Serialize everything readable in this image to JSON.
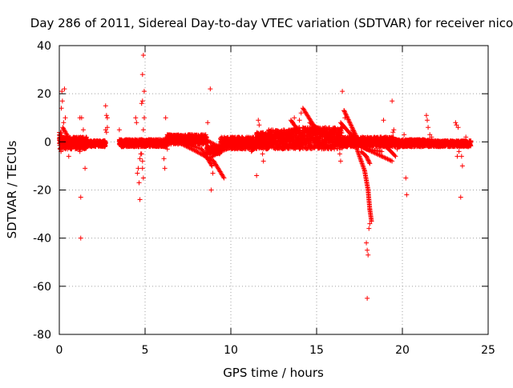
{
  "colors": {
    "series": "#ff0000",
    "grid": "#a0a0a0",
    "frame": "#000000",
    "background": "#ffffff"
  },
  "chart_data": {
    "type": "scatter",
    "title": "Day 286 of 2011, Sidereal Day-to-day VTEC variation (SDTVAR) for receiver nico",
    "xlabel": "GPS time / hours",
    "ylabel": "SDTVAR / TECUs",
    "xlim": [
      0,
      25
    ],
    "ylim": [
      -80,
      40
    ],
    "xticks": [
      0,
      5,
      10,
      15,
      20,
      25
    ],
    "yticks": [
      -80,
      -60,
      -40,
      -20,
      0,
      20,
      40
    ],
    "grid": true,
    "marker": "plus",
    "series": [
      {
        "name": "SDTVAR",
        "bands": [
          {
            "x0": 0.0,
            "x1": 0.2,
            "ylo": -3,
            "yhi": 4
          },
          {
            "x0": 0.2,
            "x1": 1.6,
            "ylo": -3,
            "yhi": 2
          },
          {
            "x0": 1.6,
            "x1": 2.7,
            "ylo": -2,
            "yhi": 0.5
          },
          {
            "x0": 3.5,
            "x1": 4.6,
            "ylo": -2,
            "yhi": 1
          },
          {
            "x0": 4.6,
            "x1": 6.3,
            "ylo": -2,
            "yhi": 1
          },
          {
            "x0": 6.3,
            "x1": 8.6,
            "ylo": -1,
            "yhi": 3
          },
          {
            "x0": 8.6,
            "x1": 9.4,
            "ylo": -5,
            "yhi": -2
          },
          {
            "x0": 9.4,
            "x1": 11.5,
            "ylo": -3,
            "yhi": 2
          },
          {
            "x0": 11.5,
            "x1": 12.2,
            "ylo": -3,
            "yhi": 4
          },
          {
            "x0": 12.2,
            "x1": 14.2,
            "ylo": -3,
            "yhi": 5
          },
          {
            "x0": 14.2,
            "x1": 16.5,
            "ylo": -3,
            "yhi": 6
          },
          {
            "x0": 16.5,
            "x1": 19.5,
            "ylo": -2,
            "yhi": 2
          },
          {
            "x0": 19.5,
            "x1": 21.6,
            "ylo": -2,
            "yhi": 1
          },
          {
            "x0": 21.6,
            "x1": 24.0,
            "ylo": -2,
            "yhi": 0.5
          }
        ],
        "tracks": [
          [
            [
              0.2,
              6
            ],
            [
              0.6,
              1
            ],
            [
              1.0,
              0
            ]
          ],
          [
            [
              3.5,
              1
            ],
            [
              4.2,
              -1
            ],
            [
              4.6,
              -1
            ]
          ],
          [
            [
              6.3,
              3
            ],
            [
              7.5,
              2
            ],
            [
              8.5,
              1
            ],
            [
              9.3,
              -2
            ]
          ],
          [
            [
              6.6,
              1
            ],
            [
              8.0,
              -4
            ],
            [
              9.0,
              -8
            ],
            [
              9.6,
              -15
            ]
          ],
          [
            [
              7.0,
              0
            ],
            [
              8.3,
              -3
            ],
            [
              8.9,
              -10
            ]
          ],
          [
            [
              8.7,
              -7
            ],
            [
              9.4,
              -4
            ],
            [
              10.5,
              -1
            ],
            [
              11.5,
              0
            ]
          ],
          [
            [
              11.2,
              -4
            ],
            [
              11.7,
              0
            ],
            [
              12.3,
              4
            ]
          ],
          [
            [
              11.8,
              0
            ],
            [
              12.6,
              3
            ],
            [
              13.6,
              5
            ]
          ],
          [
            [
              12.2,
              1
            ],
            [
              13.2,
              4
            ],
            [
              14.0,
              6
            ]
          ],
          [
            [
              13.5,
              9
            ],
            [
              14.0,
              4
            ],
            [
              14.4,
              0
            ]
          ],
          [
            [
              14.2,
              14
            ],
            [
              14.9,
              6
            ],
            [
              15.5,
              2
            ],
            [
              16.0,
              0
            ]
          ],
          [
            [
              14.6,
              8
            ],
            [
              15.4,
              4
            ],
            [
              16.2,
              1
            ]
          ],
          [
            [
              16.4,
              8
            ],
            [
              17.0,
              3
            ],
            [
              17.6,
              0
            ]
          ],
          [
            [
              16.6,
              13
            ],
            [
              17.6,
              -2
            ],
            [
              18.8,
              -6
            ],
            [
              19.4,
              -8
            ]
          ],
          [
            [
              17.1,
              5
            ],
            [
              17.3,
              -2
            ],
            [
              17.6,
              -8
            ],
            [
              17.8,
              -12
            ],
            [
              18.0,
              -20
            ],
            [
              18.1,
              -28
            ],
            [
              18.2,
              -33
            ]
          ],
          [
            [
              17.6,
              -4
            ],
            [
              17.9,
              -6
            ],
            [
              18.1,
              -9
            ]
          ],
          [
            [
              16.8,
              2
            ],
            [
              17.9,
              -3
            ],
            [
              18.8,
              -4
            ]
          ],
          [
            [
              18.6,
              0
            ],
            [
              19.2,
              -3
            ],
            [
              19.6,
              -6
            ]
          ],
          [
            [
              19.6,
              0
            ],
            [
              20.6,
              -1
            ],
            [
              21.6,
              0
            ]
          ],
          [
            [
              21.5,
              0
            ],
            [
              22.6,
              -1
            ],
            [
              23.8,
              0
            ]
          ]
        ],
        "points": [
          [
            0.15,
            21
          ],
          [
            0.18,
            17
          ],
          [
            0.12,
            14
          ],
          [
            0.3,
            22
          ],
          [
            0.35,
            10
          ],
          [
            0.25,
            8
          ],
          [
            0.05,
            -3
          ],
          [
            0.1,
            -4
          ],
          [
            0.55,
            -6
          ],
          [
            0.2,
            5
          ],
          [
            1.2,
            10
          ],
          [
            1.3,
            10
          ],
          [
            1.2,
            -4
          ],
          [
            1.25,
            -23
          ],
          [
            1.25,
            -40
          ],
          [
            1.5,
            -11
          ],
          [
            1.4,
            5
          ],
          [
            2.7,
            15
          ],
          [
            2.75,
            11
          ],
          [
            2.8,
            10
          ],
          [
            2.7,
            5
          ],
          [
            2.75,
            4
          ],
          [
            2.8,
            6
          ],
          [
            3.5,
            5
          ],
          [
            4.45,
            10
          ],
          [
            4.5,
            8
          ],
          [
            4.55,
            -13
          ],
          [
            4.6,
            -11
          ],
          [
            4.65,
            -17
          ],
          [
            4.7,
            -24
          ],
          [
            4.75,
            -5
          ],
          [
            4.6,
            -2
          ],
          [
            4.7,
            -7
          ],
          [
            4.9,
            36
          ],
          [
            4.85,
            28
          ],
          [
            4.8,
            16
          ],
          [
            4.85,
            17
          ],
          [
            4.95,
            21
          ],
          [
            4.9,
            5
          ],
          [
            4.95,
            10
          ],
          [
            4.85,
            -11
          ],
          [
            4.9,
            -15
          ],
          [
            4.8,
            -5
          ],
          [
            4.85,
            -8
          ],
          [
            6.1,
            -7
          ],
          [
            6.15,
            -11
          ],
          [
            6.2,
            10
          ],
          [
            6.25,
            2
          ],
          [
            6.3,
            -3
          ],
          [
            6.1,
            0
          ],
          [
            8.65,
            8
          ],
          [
            8.8,
            22
          ],
          [
            8.85,
            -20
          ],
          [
            8.9,
            -10
          ],
          [
            8.95,
            -13
          ],
          [
            9.0,
            -9
          ],
          [
            11.5,
            -14
          ],
          [
            11.6,
            9
          ],
          [
            11.65,
            7
          ],
          [
            11.9,
            -8
          ],
          [
            11.85,
            -5
          ],
          [
            13.7,
            10
          ],
          [
            13.6,
            8
          ],
          [
            14.0,
            9
          ],
          [
            14.1,
            12
          ],
          [
            16.0,
            5
          ],
          [
            16.05,
            4
          ],
          [
            16.5,
            21
          ],
          [
            16.6,
            13
          ],
          [
            16.65,
            10
          ],
          [
            16.3,
            -2
          ],
          [
            16.35,
            -5
          ],
          [
            16.4,
            -8
          ],
          [
            17.9,
            -42
          ],
          [
            17.95,
            -45
          ],
          [
            18.0,
            -47
          ],
          [
            17.95,
            -65
          ],
          [
            18.05,
            -36
          ],
          [
            18.1,
            -34
          ],
          [
            18.9,
            9
          ],
          [
            19.4,
            17
          ],
          [
            19.5,
            5
          ],
          [
            19.45,
            4
          ],
          [
            19.6,
            -2
          ],
          [
            19.7,
            -3
          ],
          [
            20.2,
            -15
          ],
          [
            20.25,
            -22
          ],
          [
            20.1,
            3
          ],
          [
            20.3,
            -1
          ],
          [
            21.4,
            11
          ],
          [
            21.45,
            9
          ],
          [
            21.5,
            6
          ],
          [
            21.6,
            3
          ],
          [
            21.7,
            2
          ],
          [
            23.1,
            8
          ],
          [
            23.15,
            7
          ],
          [
            23.25,
            6
          ],
          [
            23.2,
            -6
          ],
          [
            23.3,
            -4
          ],
          [
            23.4,
            -23
          ],
          [
            23.5,
            -10
          ],
          [
            23.45,
            -6
          ],
          [
            23.6,
            -1
          ],
          [
            23.7,
            2
          ]
        ]
      }
    ]
  }
}
